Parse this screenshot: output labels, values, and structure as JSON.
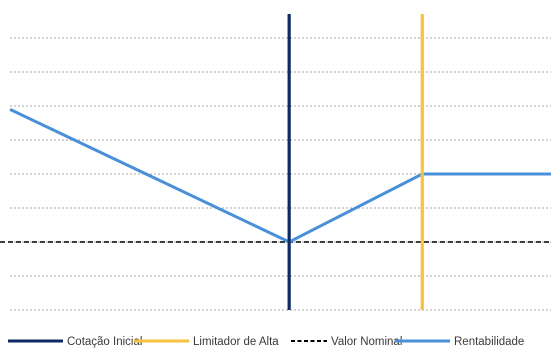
{
  "chart_data": {
    "type": "line",
    "title": "",
    "xlabel": "",
    "ylabel": "",
    "grid": true,
    "legend_position": "bottom",
    "x_range": [
      0,
      100
    ],
    "y_range": [
      -2,
      7
    ],
    "gridlines_y": [
      -2,
      -1,
      0,
      1,
      2,
      3,
      4,
      5,
      6
    ],
    "series": [
      {
        "name": "Cotação Inicial",
        "kind": "vertical-line",
        "color": "#0d2a63",
        "style": "solid",
        "x": 51.6,
        "y_span": [
          -2,
          7
        ]
      },
      {
        "name": "Limitador de Alta",
        "kind": "vertical-line",
        "color": "#f5c242",
        "style": "solid",
        "x": 76.2,
        "y_span": [
          -2,
          7
        ]
      },
      {
        "name": "Valor Nominal",
        "kind": "horizontal-line",
        "color": "#000000",
        "style": "dashed",
        "y": 0
      },
      {
        "name": "Rentabilidade",
        "kind": "polyline",
        "color": "#4a90d9",
        "style": "solid",
        "x": [
          0,
          51.6,
          76.2,
          100
        ],
        "y": [
          3.9,
          0,
          2,
          2
        ]
      }
    ]
  }
}
